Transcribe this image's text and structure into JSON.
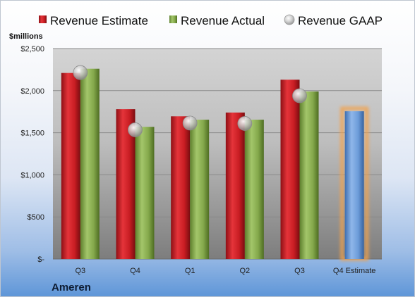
{
  "chart_data": {
    "type": "bar",
    "ylabel": "$millions",
    "ylim": [
      0,
      2500
    ],
    "yticks": [
      0,
      500,
      1000,
      1500,
      2000,
      2500
    ],
    "ytick_labels": [
      "$-",
      "$500",
      "$1,000",
      "$1,500",
      "$2,000",
      "$2,500"
    ],
    "categories": [
      "Q3",
      "Q4",
      "Q1",
      "Q2",
      "Q3",
      "Q4 Estimate"
    ],
    "grid": true,
    "legend_position": "top",
    "series": [
      {
        "name": "Revenue Estimate",
        "type": "bar",
        "color": "#d9232a",
        "values": [
          2210,
          1780,
          1695,
          1740,
          2130,
          null
        ]
      },
      {
        "name": "Revenue Actual",
        "type": "bar",
        "color": "#8ab04a",
        "values": [
          2260,
          1570,
          1655,
          1655,
          1990,
          null
        ]
      },
      {
        "name": "Revenue GAAP",
        "type": "marker",
        "color": "#c8c8c8",
        "values": [
          2215,
          1535,
          1615,
          1610,
          1940,
          null
        ]
      }
    ],
    "forecast": {
      "category_index": 5,
      "value": 1755,
      "color": "#6f9fdb",
      "glow_color": "#f3a24b"
    }
  },
  "company": "Ameren"
}
